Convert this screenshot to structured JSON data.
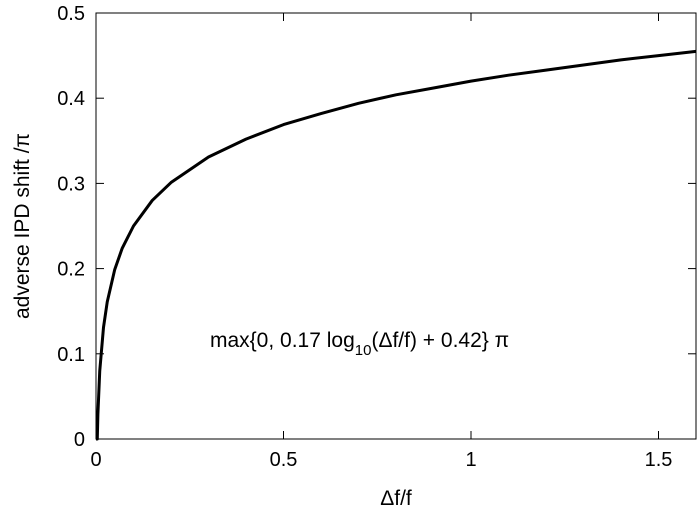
{
  "chart_data": {
    "type": "line",
    "title": "",
    "xlabel": "Δf/f",
    "ylabel": "adverse IPD shift /π",
    "xlim": [
      0,
      1.6
    ],
    "ylim": [
      0,
      0.5
    ],
    "x_ticks": [
      0,
      0.5,
      1,
      1.5
    ],
    "x_tick_labels": [
      "0",
      "0.5",
      "1",
      "1.5"
    ],
    "y_ticks": [
      0,
      0.1,
      0.2,
      0.3,
      0.4,
      0.5
    ],
    "y_tick_labels": [
      "0",
      "0.1",
      "0.2",
      "0.3",
      "0.4",
      "0.5"
    ],
    "grid": false,
    "series": [
      {
        "color": "#000000",
        "formula": "max(0, 0.17*log10(x) + 0.42)",
        "x": [
          0,
          0.0034,
          0.005,
          0.01,
          0.02,
          0.03,
          0.05,
          0.07,
          0.1,
          0.15,
          0.2,
          0.3,
          0.4,
          0.5,
          0.6,
          0.7,
          0.8,
          0.9,
          1.0,
          1.1,
          1.2,
          1.3,
          1.4,
          1.5,
          1.6
        ],
        "y": [
          0,
          0,
          0.029,
          0.08,
          0.131,
          0.161,
          0.199,
          0.224,
          0.25,
          0.28,
          0.301,
          0.331,
          0.352,
          0.369,
          0.382,
          0.394,
          0.404,
          0.412,
          0.42,
          0.427,
          0.433,
          0.439,
          0.445,
          0.45,
          0.455
        ]
      }
    ],
    "annotation": {
      "prefix": "max{0, 0.17 log",
      "subscript": "10",
      "suffix": "(Δf/f) + 0.42} π"
    }
  }
}
